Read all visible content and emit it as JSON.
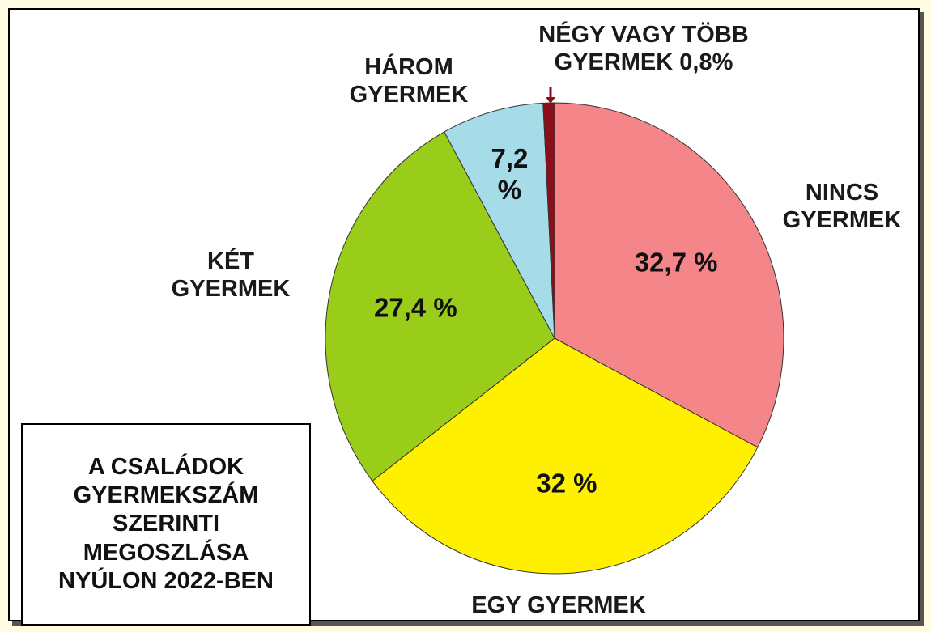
{
  "chart_data": {
    "type": "pie",
    "title": [
      "A CSALÁDOK",
      "GYERMEKSZÁM",
      "SZERINTI",
      "MEGOSZLÁSA",
      "NYÚLON 2022-BEN"
    ],
    "categories": [
      "NINCS GYERMEK",
      "EGY GYERMEK",
      "KÉT GYERMEK",
      "HÁROM GYERMEK",
      "NÉGY VAGY TÖBB GYERMEK"
    ],
    "values": [
      32.7,
      32,
      27.4,
      7.2,
      0.8
    ],
    "value_labels": [
      "32,7 %",
      "32 %",
      "27,4 %",
      "7,2 %",
      "0,8%"
    ],
    "colors": [
      "#f4868a",
      "#fff000",
      "#9acd1a",
      "#a6dbe8",
      "#8b0f1a"
    ]
  }
}
